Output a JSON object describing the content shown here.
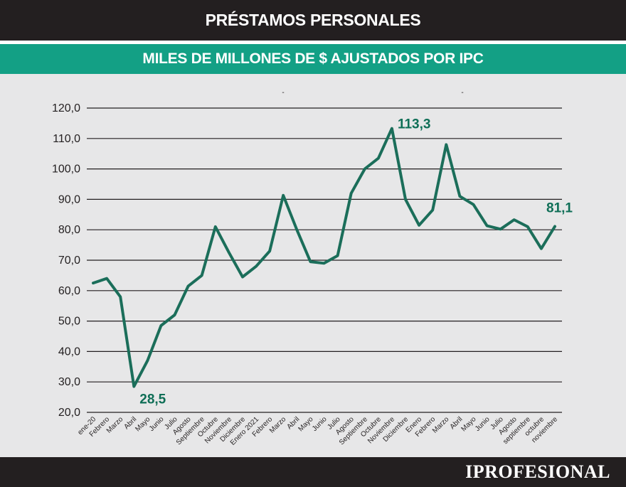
{
  "header": {
    "title": "PRÉSTAMOS PERSONALES",
    "subtitle": "MILES DE MILLONES DE $ AJUSTADOS POR IPC"
  },
  "footer": {
    "brand": "IPROFESIONAL"
  },
  "colors": {
    "line": "#1b6e5a",
    "accent": "#13a085",
    "dark": "#231f20",
    "background": "#e7e7e8"
  },
  "chart_data": {
    "type": "line",
    "title": "PRÉSTAMOS PERSONALES",
    "subtitle": "MILES DE MILLONES DE $ AJUSTADOS POR IPC",
    "ylim": [
      20,
      120
    ],
    "yticks": [
      "20,0",
      "30,0",
      "40,0",
      "50,0",
      "60,0",
      "70,0",
      "80,0",
      "90,0",
      "100,0",
      "110,0",
      "120,0"
    ],
    "grid": true,
    "categories": [
      "ene-20",
      "Febrero",
      "Marzo",
      "Abril",
      "Mayo",
      "Junio",
      "Julio",
      "Agosto",
      "Septiembre",
      "Octubre",
      "Noviembre",
      "Diciembre",
      "Enero 2021",
      "Febrero",
      "Marzo",
      "Abril",
      "Mayo",
      "Junio",
      "Julio",
      "Agosto",
      "Septiembre",
      "Octubre",
      "Noviembre",
      "Diciembre",
      "Enero",
      "Febrero",
      "Marzo",
      "Abril",
      "Mayo",
      "Junio",
      "Julio",
      "Agosto",
      "septiembre",
      "octubre",
      "noviembre"
    ],
    "values": [
      62.5,
      64,
      58,
      28.5,
      37,
      48.5,
      52,
      61.5,
      65,
      81,
      72.5,
      64.5,
      68,
      73,
      91.3,
      80,
      69.5,
      69,
      71.5,
      92,
      100,
      103.5,
      113.3,
      90,
      81.5,
      86.5,
      108,
      91,
      88.3,
      81.3,
      80.2,
      83.3,
      81,
      73.8,
      81.1
    ],
    "annotations": [
      {
        "index": 3,
        "text": "28,5"
      },
      {
        "index": 22,
        "text": "113,3"
      },
      {
        "index": 34,
        "text": "81,1"
      }
    ],
    "markers": [
      "-",
      "-"
    ]
  }
}
